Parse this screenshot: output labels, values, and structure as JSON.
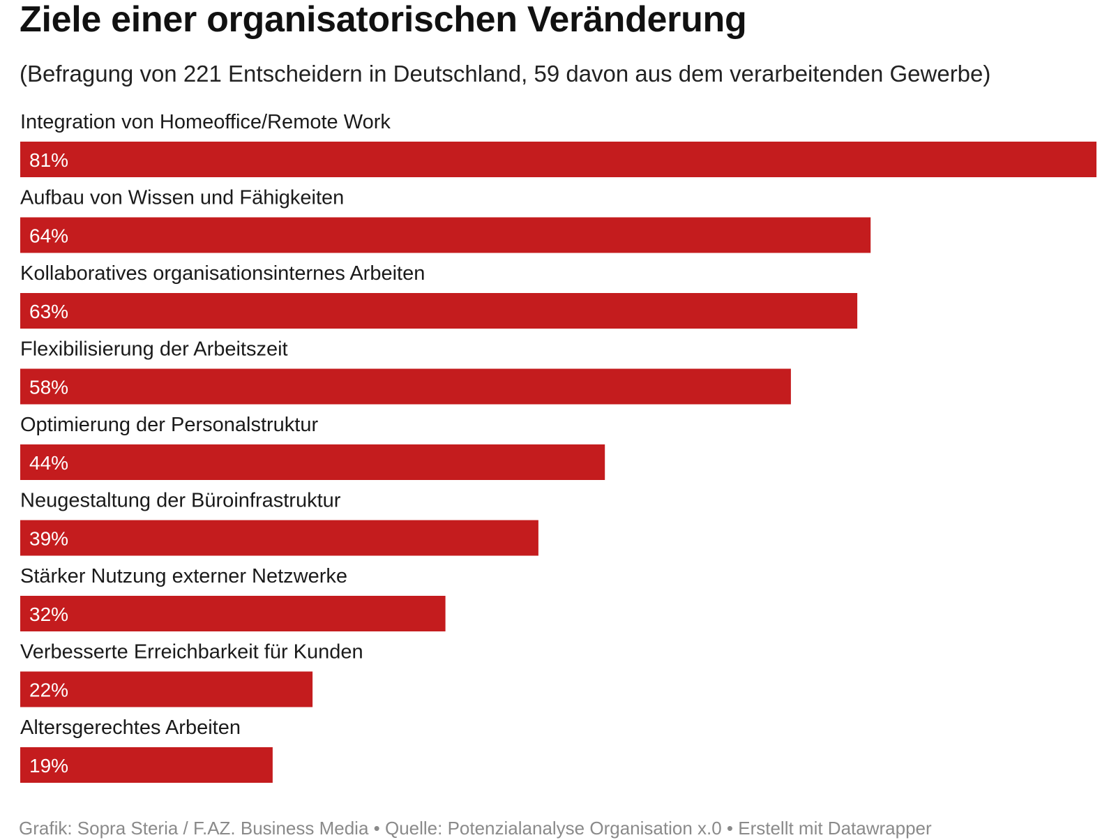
{
  "chart_data": {
    "type": "bar",
    "orientation": "horizontal",
    "title": "Ziele einer organisatorischen Veränderung",
    "subtitle": "(Befragung von 221 Entscheidern in Deutschland, 59 davon aus dem verarbeitenden Gewerbe)",
    "categories": [
      "Integration von Homeoffice/Remote Work",
      "Aufbau von Wissen und Fähigkeiten",
      "Kollaboratives organisationsinternes Arbeiten",
      "Flexibilisierung der Arbeitszeit",
      "Optimierung der Personalstruktur",
      "Neugestaltung der Büroinfrastruktur",
      "Stärker Nutzung externer Netzwerke",
      "Verbesserte Erreichbarkeit für Kunden",
      "Altersgerechtes Arbeiten"
    ],
    "values": [
      81,
      64,
      63,
      58,
      44,
      39,
      32,
      22,
      19
    ],
    "value_labels": [
      "81%",
      "64%",
      "63%",
      "58%",
      "44%",
      "39%",
      "32%",
      "22%",
      "19%"
    ],
    "unit": "%",
    "xlim": [
      0,
      81
    ],
    "grid": false,
    "legend": "none",
    "bar_color": "#c41c1e",
    "footer": "Grafik: Sopra Steria / F.AZ. Business Media • Quelle: Potenzialanalyse Organisation x.0 • Erstellt mit Datawrapper"
  }
}
